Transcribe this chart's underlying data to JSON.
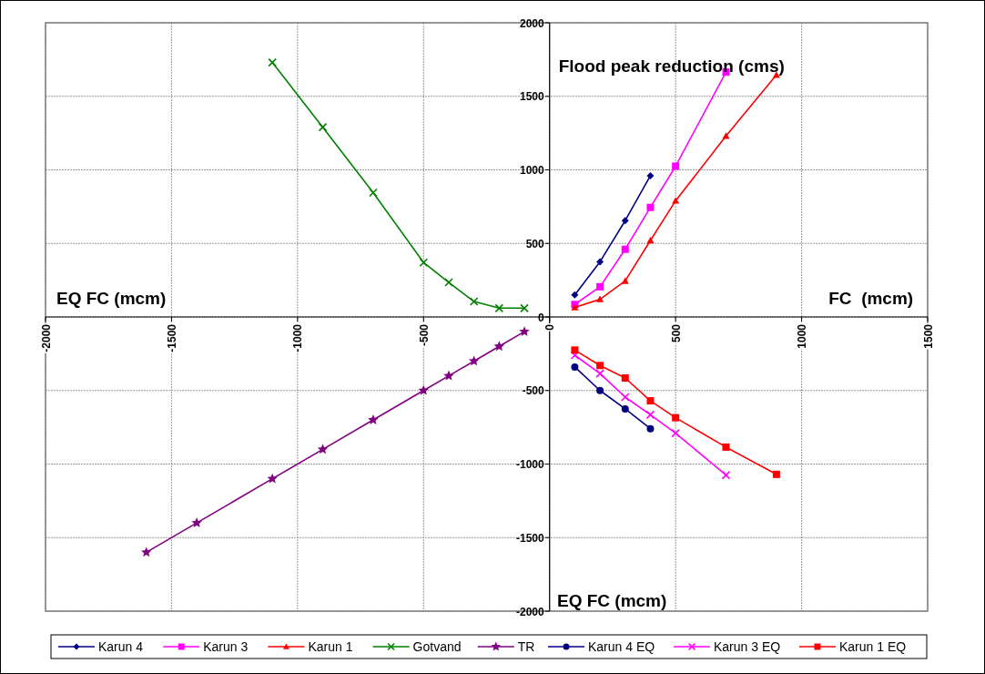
{
  "chart_data": {
    "type": "line",
    "xlabel": "FC  (mcm)",
    "ylabel": "Flood peak reduction (cms)",
    "annotations": [
      "EQ FC (mcm)",
      "EQ FC (mcm)"
    ],
    "xlim": [
      -2000,
      1500
    ],
    "xticks": [
      -2000,
      -1500,
      -1000,
      -500,
      0,
      500,
      1000,
      1500
    ],
    "ylim": [
      -2000,
      2000
    ],
    "yticks": [
      -2000,
      -1500,
      -1000,
      -500,
      0,
      500,
      1000,
      1500,
      2000
    ],
    "grid": true,
    "legend": "bottom",
    "series": [
      {
        "name": "Karun 4",
        "color": "#000080",
        "marker": "diamond",
        "x": [
          100,
          200,
          300,
          400
        ],
        "values": [
          150,
          375,
          655,
          960
        ]
      },
      {
        "name": "Karun 3",
        "color": "#ff00ff",
        "marker": "square",
        "x": [
          100,
          200,
          300,
          400,
          500,
          700
        ],
        "values": [
          85,
          205,
          460,
          745,
          1025,
          1665
        ]
      },
      {
        "name": "Karun 1",
        "color": "#ff0000",
        "marker": "triangle",
        "x": [
          100,
          200,
          300,
          400,
          500,
          700,
          900
        ],
        "values": [
          65,
          120,
          245,
          520,
          790,
          1230,
          1645
        ]
      },
      {
        "name": "Gotvand",
        "color": "#008000",
        "marker": "cross",
        "x": [
          -1100,
          -900,
          -700,
          -500,
          -400,
          -300,
          -200,
          -100
        ],
        "values": [
          1730,
          1290,
          845,
          370,
          235,
          105,
          60,
          60
        ]
      },
      {
        "name": "TR",
        "color": "#800080",
        "marker": "star",
        "x": [
          -1600,
          -1400,
          -1100,
          -900,
          -700,
          -500,
          -400,
          -300,
          -200,
          -100
        ],
        "values": [
          -1600,
          -1400,
          -1100,
          -900,
          -700,
          -500,
          -400,
          -300,
          -200,
          -100
        ]
      },
      {
        "name": "Karun 4 EQ",
        "color": "#000080",
        "marker": "circle",
        "x": [
          100,
          200,
          300,
          400
        ],
        "values": [
          -340,
          -500,
          -625,
          -760
        ]
      },
      {
        "name": "Karun 3 EQ",
        "color": "#ff00ff",
        "marker": "cross",
        "x": [
          100,
          200,
          300,
          400,
          500,
          700
        ],
        "values": [
          -260,
          -385,
          -545,
          -665,
          -790,
          -1075
        ]
      },
      {
        "name": "Karun 1 EQ",
        "color": "#ff0000",
        "marker": "square",
        "x": [
          100,
          200,
          300,
          400,
          500,
          700,
          900
        ],
        "values": [
          -225,
          -330,
          -415,
          -570,
          -685,
          -885,
          -1070
        ]
      }
    ]
  }
}
